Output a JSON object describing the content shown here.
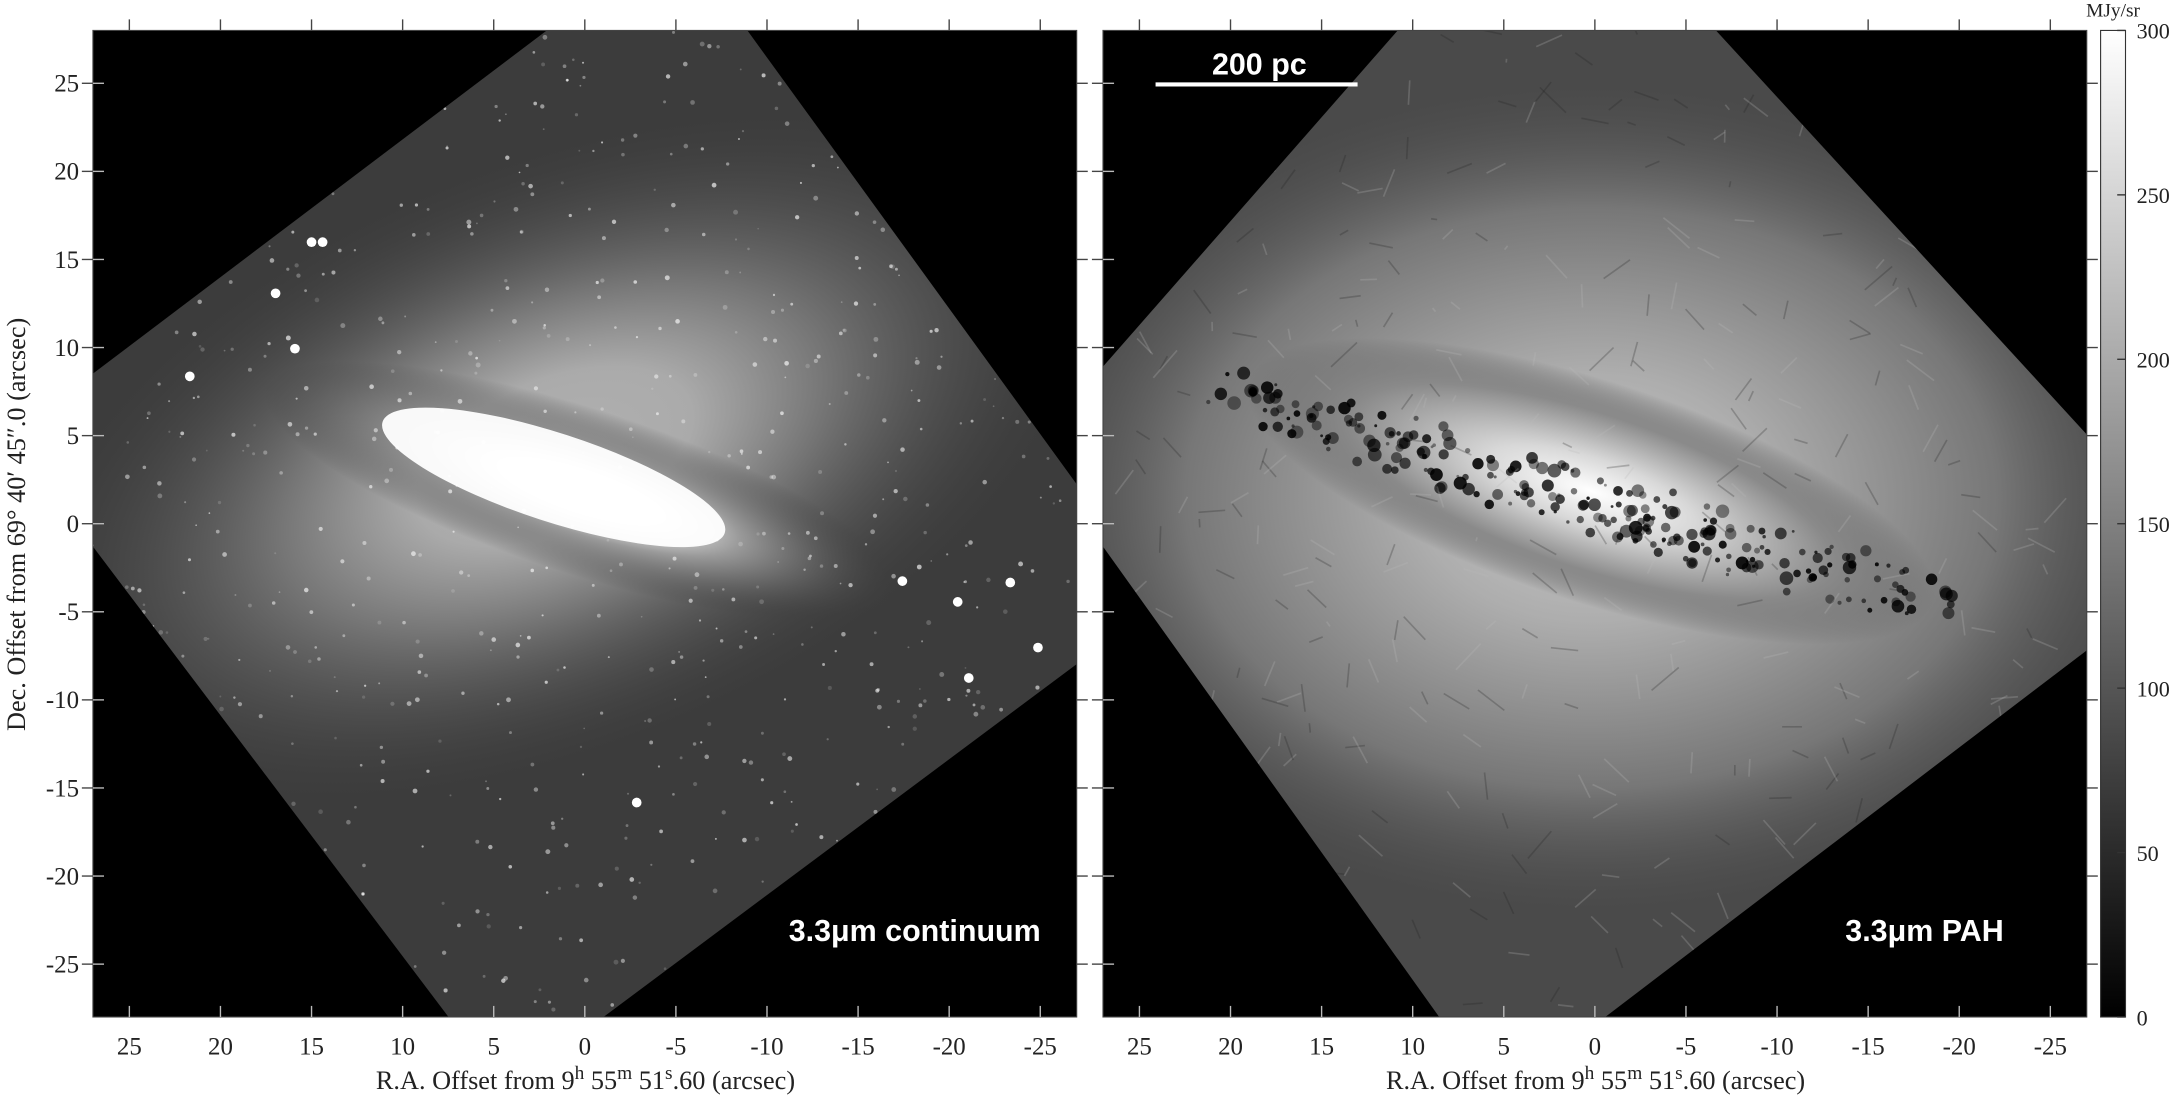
{
  "chart_data": [
    {
      "type": "heatmap",
      "panel_label": "3.3μm continuum",
      "xlabel": {
        "pre": "R.A. Offset from 9",
        "h": "h",
        "mid": " 55",
        "m": "m",
        "post": " 51",
        "s": "s",
        "tail": ".60 (arcsec)"
      },
      "ylabel": "Dec. Offset from 69° 40′ 45″.0 (arcsec)",
      "xticks": [
        25,
        20,
        15,
        10,
        5,
        0,
        -5,
        -10,
        -15,
        -20,
        -25
      ],
      "yticks": [
        25,
        20,
        15,
        10,
        5,
        0,
        -5,
        -10,
        -15,
        -20,
        -25
      ],
      "xlim": [
        27,
        -27
      ],
      "ylim": [
        -28,
        28
      ],
      "colormap": "gray"
    },
    {
      "type": "heatmap",
      "panel_label": "3.3μm PAH",
      "scale_bar": "200 pc",
      "xlabel": {
        "pre": "R.A. Offset from 9",
        "h": "h",
        "mid": " 55",
        "m": "m",
        "post": " 51",
        "s": "s",
        "tail": ".60 (arcsec)"
      },
      "xticks": [
        25,
        20,
        15,
        10,
        5,
        0,
        -5,
        -10,
        -15,
        -20,
        -25
      ],
      "xlim": [
        27,
        -27
      ],
      "ylim": [
        -28,
        28
      ],
      "colormap": "gray",
      "colorbar": {
        "label": "MJy/sr",
        "min": 0,
        "max": 300,
        "ticks": [
          0,
          50,
          100,
          150,
          200,
          250,
          300
        ]
      }
    }
  ]
}
